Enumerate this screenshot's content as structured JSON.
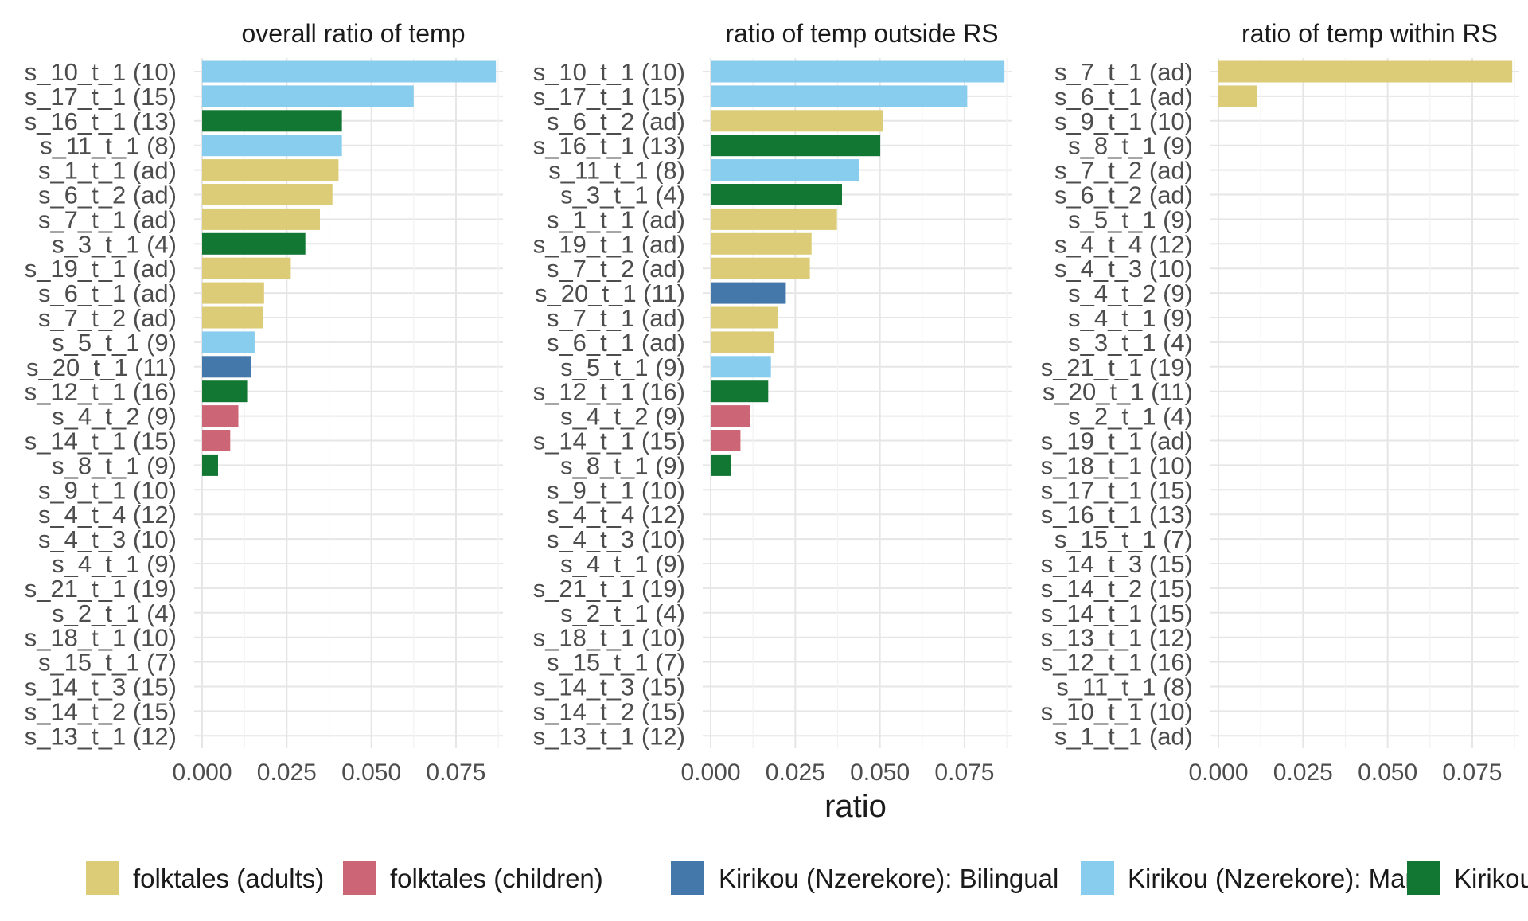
{
  "chart_data": [
    {
      "type": "bar",
      "orientation": "horizontal",
      "title": "overall ratio of temp",
      "xlabel": "ratio",
      "xlim": [
        0,
        0.087
      ],
      "xticks": [
        "0.000",
        "0.025",
        "0.050",
        "0.075"
      ],
      "grid": true,
      "bars": [
        {
          "label": "s_10_t_1 (10)",
          "value": 0.0868,
          "group": "Kirikou (Nzerekore): Mano"
        },
        {
          "label": "s_17_t_1 (15)",
          "value": 0.0625,
          "group": "Kirikou (Nzerekore): Mano"
        },
        {
          "label": "s_16_t_1 (13)",
          "value": 0.0413,
          "group": "Kirikou"
        },
        {
          "label": "s_11_t_1 (8)",
          "value": 0.0413,
          "group": "Kirikou (Nzerekore): Mano"
        },
        {
          "label": "s_1_t_1 (ad)",
          "value": 0.0403,
          "group": "folktales (adults)"
        },
        {
          "label": "s_6_t_2 (ad)",
          "value": 0.0385,
          "group": "folktales (adults)"
        },
        {
          "label": "s_7_t_1 (ad)",
          "value": 0.0348,
          "group": "folktales (adults)"
        },
        {
          "label": "s_3_t_1 (4)",
          "value": 0.0305,
          "group": "Kirikou"
        },
        {
          "label": "s_19_t_1 (ad)",
          "value": 0.0262,
          "group": "folktales (adults)"
        },
        {
          "label": "s_6_t_1 (ad)",
          "value": 0.0183,
          "group": "folktales (adults)"
        },
        {
          "label": "s_7_t_2 (ad)",
          "value": 0.0181,
          "group": "folktales (adults)"
        },
        {
          "label": "s_5_t_1 (9)",
          "value": 0.0155,
          "group": "Kirikou (Nzerekore): Mano"
        },
        {
          "label": "s_20_t_1 (11)",
          "value": 0.0145,
          "group": "Kirikou (Nzerekore): Bilingual"
        },
        {
          "label": "s_12_t_1 (16)",
          "value": 0.0133,
          "group": "Kirikou"
        },
        {
          "label": "s_4_t_2 (9)",
          "value": 0.0107,
          "group": "folktales (children)"
        },
        {
          "label": "s_14_t_1 (15)",
          "value": 0.0083,
          "group": "folktales (children)"
        },
        {
          "label": "s_8_t_1 (9)",
          "value": 0.0047,
          "group": "Kirikou"
        },
        {
          "label": "s_9_t_1 (10)",
          "value": 0,
          "group": null
        },
        {
          "label": "s_4_t_4 (12)",
          "value": 0,
          "group": null
        },
        {
          "label": "s_4_t_3 (10)",
          "value": 0,
          "group": null
        },
        {
          "label": "s_4_t_1 (9)",
          "value": 0,
          "group": null
        },
        {
          "label": "s_21_t_1 (19)",
          "value": 0,
          "group": null
        },
        {
          "label": "s_2_t_1 (4)",
          "value": 0,
          "group": null
        },
        {
          "label": "s_18_t_1 (10)",
          "value": 0,
          "group": null
        },
        {
          "label": "s_15_t_1 (7)",
          "value": 0,
          "group": null
        },
        {
          "label": "s_14_t_3 (15)",
          "value": 0,
          "group": null
        },
        {
          "label": "s_14_t_2 (15)",
          "value": 0,
          "group": null
        },
        {
          "label": "s_13_t_1 (12)",
          "value": 0,
          "group": null
        }
      ]
    },
    {
      "type": "bar",
      "orientation": "horizontal",
      "title": "ratio of temp outside RS",
      "xlabel": "ratio",
      "xlim": [
        0,
        0.087
      ],
      "xticks": [
        "0.000",
        "0.025",
        "0.050",
        "0.075"
      ],
      "grid": true,
      "bars": [
        {
          "label": "s_10_t_1 (10)",
          "value": 0.0868,
          "group": "Kirikou (Nzerekore): Mano"
        },
        {
          "label": "s_17_t_1 (15)",
          "value": 0.0758,
          "group": "Kirikou (Nzerekore): Mano"
        },
        {
          "label": "s_6_t_2 (ad)",
          "value": 0.0508,
          "group": "folktales (adults)"
        },
        {
          "label": "s_16_t_1 (13)",
          "value": 0.0501,
          "group": "Kirikou"
        },
        {
          "label": "s_11_t_1 (8)",
          "value": 0.0438,
          "group": "Kirikou (Nzerekore): Mano"
        },
        {
          "label": "s_3_t_1 (4)",
          "value": 0.0388,
          "group": "Kirikou"
        },
        {
          "label": "s_1_t_1 (ad)",
          "value": 0.0373,
          "group": "folktales (adults)"
        },
        {
          "label": "s_19_t_1 (ad)",
          "value": 0.0298,
          "group": "folktales (adults)"
        },
        {
          "label": "s_7_t_2 (ad)",
          "value": 0.0293,
          "group": "folktales (adults)"
        },
        {
          "label": "s_20_t_1 (11)",
          "value": 0.0222,
          "group": "Kirikou (Nzerekore): Bilingual"
        },
        {
          "label": "s_7_t_1 (ad)",
          "value": 0.0198,
          "group": "folktales (adults)"
        },
        {
          "label": "s_6_t_1 (ad)",
          "value": 0.0188,
          "group": "folktales (adults)"
        },
        {
          "label": "s_5_t_1 (9)",
          "value": 0.0178,
          "group": "Kirikou (Nzerekore): Mano"
        },
        {
          "label": "s_12_t_1 (16)",
          "value": 0.017,
          "group": "Kirikou"
        },
        {
          "label": "s_4_t_2 (9)",
          "value": 0.0117,
          "group": "folktales (children)"
        },
        {
          "label": "s_14_t_1 (15)",
          "value": 0.0088,
          "group": "folktales (children)"
        },
        {
          "label": "s_8_t_1 (9)",
          "value": 0.006,
          "group": "Kirikou"
        },
        {
          "label": "s_9_t_1 (10)",
          "value": 0,
          "group": null
        },
        {
          "label": "s_4_t_4 (12)",
          "value": 0,
          "group": null
        },
        {
          "label": "s_4_t_3 (10)",
          "value": 0,
          "group": null
        },
        {
          "label": "s_4_t_1 (9)",
          "value": 0,
          "group": null
        },
        {
          "label": "s_21_t_1 (19)",
          "value": 0,
          "group": null
        },
        {
          "label": "s_2_t_1 (4)",
          "value": 0,
          "group": null
        },
        {
          "label": "s_18_t_1 (10)",
          "value": 0,
          "group": null
        },
        {
          "label": "s_15_t_1 (7)",
          "value": 0,
          "group": null
        },
        {
          "label": "s_14_t_3 (15)",
          "value": 0,
          "group": null
        },
        {
          "label": "s_14_t_2 (15)",
          "value": 0,
          "group": null
        },
        {
          "label": "s_13_t_1 (12)",
          "value": 0,
          "group": null
        }
      ]
    },
    {
      "type": "bar",
      "orientation": "horizontal",
      "title": "ratio of temp within RS",
      "xlabel": "ratio",
      "xlim": [
        0,
        0.087
      ],
      "xticks": [
        "0.000",
        "0.025",
        "0.050",
        "0.075"
      ],
      "grid": true,
      "bars": [
        {
          "label": "s_7_t_1 (ad)",
          "value": 0.0868,
          "group": "folktales (adults)"
        },
        {
          "label": "s_6_t_1 (ad)",
          "value": 0.0115,
          "group": "folktales (adults)"
        },
        {
          "label": "s_9_t_1 (10)",
          "value": 0,
          "group": null
        },
        {
          "label": "s_8_t_1 (9)",
          "value": 0,
          "group": null
        },
        {
          "label": "s_7_t_2 (ad)",
          "value": 0,
          "group": null
        },
        {
          "label": "s_6_t_2 (ad)",
          "value": 0,
          "group": null
        },
        {
          "label": "s_5_t_1 (9)",
          "value": 0,
          "group": null
        },
        {
          "label": "s_4_t_4 (12)",
          "value": 0,
          "group": null
        },
        {
          "label": "s_4_t_3 (10)",
          "value": 0,
          "group": null
        },
        {
          "label": "s_4_t_2 (9)",
          "value": 0,
          "group": null
        },
        {
          "label": "s_4_t_1 (9)",
          "value": 0,
          "group": null
        },
        {
          "label": "s_3_t_1 (4)",
          "value": 0,
          "group": null
        },
        {
          "label": "s_21_t_1 (19)",
          "value": 0,
          "group": null
        },
        {
          "label": "s_20_t_1 (11)",
          "value": 0,
          "group": null
        },
        {
          "label": "s_2_t_1 (4)",
          "value": 0,
          "group": null
        },
        {
          "label": "s_19_t_1 (ad)",
          "value": 0,
          "group": null
        },
        {
          "label": "s_18_t_1 (10)",
          "value": 0,
          "group": null
        },
        {
          "label": "s_17_t_1 (15)",
          "value": 0,
          "group": null
        },
        {
          "label": "s_16_t_1 (13)",
          "value": 0,
          "group": null
        },
        {
          "label": "s_15_t_1 (7)",
          "value": 0,
          "group": null
        },
        {
          "label": "s_14_t_3 (15)",
          "value": 0,
          "group": null
        },
        {
          "label": "s_14_t_2 (15)",
          "value": 0,
          "group": null
        },
        {
          "label": "s_14_t_1 (15)",
          "value": 0,
          "group": null
        },
        {
          "label": "s_13_t_1 (12)",
          "value": 0,
          "group": null
        },
        {
          "label": "s_12_t_1 (16)",
          "value": 0,
          "group": null
        },
        {
          "label": "s_11_t_1 (8)",
          "value": 0,
          "group": null
        },
        {
          "label": "s_10_t_1 (10)",
          "value": 0,
          "group": null
        },
        {
          "label": "s_1_t_1 (ad)",
          "value": 0,
          "group": null
        }
      ]
    }
  ],
  "shared_xlabel": "ratio",
  "legend": {
    "position": "bottom",
    "items": [
      {
        "label": "folktales (adults)",
        "color": "#DDCC77"
      },
      {
        "label": "folktales (children)",
        "color": "#CC6677"
      },
      {
        "label": "Kirikou (Nzerekore): Bilingual",
        "color": "#4477AA"
      },
      {
        "label": "Kirikou (Nzerekore): Mano",
        "color": "#88CCEE"
      },
      {
        "label": "Kirikou",
        "color": "#117733"
      }
    ]
  }
}
